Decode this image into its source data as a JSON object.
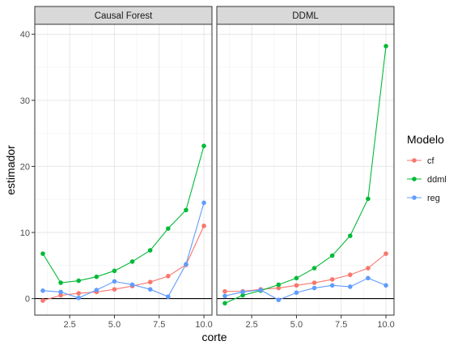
{
  "chart_data": {
    "type": "line",
    "xlabel": "corte",
    "ylabel": "estimador",
    "xlim": [
      0.55,
      10.45
    ],
    "ylim": [
      -2.5,
      41.5
    ],
    "x_ticks": [
      2.5,
      5.0,
      7.5,
      10.0
    ],
    "x_tick_labels": [
      "2.5",
      "5.0",
      "7.5",
      "10.0"
    ],
    "y_ticks": [
      0,
      10,
      20,
      30,
      40
    ],
    "y_tick_labels": [
      "0",
      "10",
      "20",
      "30",
      "40"
    ],
    "reference_line_y": 0,
    "grid": true,
    "legend": {
      "title": "Modelo",
      "position": "right",
      "entries": [
        "cf",
        "ddml",
        "reg"
      ]
    },
    "x": [
      1,
      2,
      3,
      4,
      5,
      6,
      7,
      8,
      9,
      10
    ],
    "panels": [
      {
        "strip": "Causal Forest",
        "series": [
          {
            "name": "cf",
            "color": "#F8766D",
            "values": [
              -0.3,
              0.5,
              0.8,
              1.0,
              1.4,
              1.9,
              2.5,
              3.4,
              5.1,
              11.0
            ]
          },
          {
            "name": "ddml",
            "color": "#00BA38",
            "values": [
              6.8,
              2.4,
              2.7,
              3.3,
              4.2,
              5.6,
              7.3,
              10.6,
              13.4,
              23.1
            ]
          },
          {
            "name": "reg",
            "color": "#619CFF",
            "values": [
              1.2,
              1.0,
              0.1,
              1.3,
              2.6,
              2.1,
              1.4,
              0.3,
              5.2,
              14.5
            ]
          }
        ]
      },
      {
        "strip": "DDML",
        "series": [
          {
            "name": "cf",
            "color": "#F8766D",
            "values": [
              1.1,
              1.1,
              1.4,
              1.6,
              2.0,
              2.4,
              2.9,
              3.6,
              4.6,
              6.8
            ]
          },
          {
            "name": "ddml",
            "color": "#00BA38",
            "values": [
              -0.7,
              0.5,
              1.2,
              2.1,
              3.1,
              4.6,
              6.5,
              9.5,
              15.1,
              38.2
            ]
          },
          {
            "name": "reg",
            "color": "#619CFF",
            "values": [
              0.4,
              1.0,
              1.3,
              -0.2,
              0.9,
              1.6,
              2.0,
              1.8,
              3.1,
              2.0
            ]
          }
        ]
      }
    ]
  }
}
